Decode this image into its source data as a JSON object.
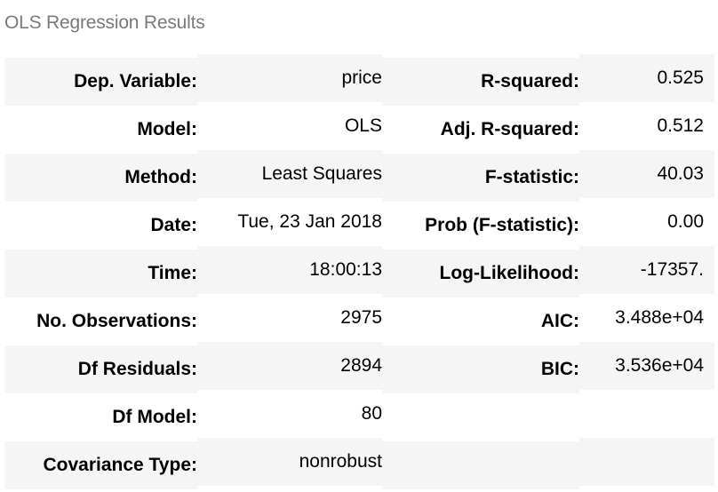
{
  "caption": "OLS Regression Results",
  "rows": [
    {
      "label1": "Dep. Variable:",
      "value1": "price",
      "label2": "R-squared:",
      "value2": "0.525"
    },
    {
      "label1": "Model:",
      "value1": "OLS",
      "label2": "Adj. R-squared:",
      "value2": "0.512"
    },
    {
      "label1": "Method:",
      "value1": "Least Squares",
      "label2": "F-statistic:",
      "value2": "40.03"
    },
    {
      "label1": "Date:",
      "value1": "Tue, 23 Jan 2018",
      "label2": "Prob (F-statistic):",
      "value2": "0.00"
    },
    {
      "label1": "Time:",
      "value1": "18:00:13",
      "label2": "Log-Likelihood:",
      "value2": "-17357."
    },
    {
      "label1": "No. Observations:",
      "value1": "2975",
      "label2": "AIC:",
      "value2": "3.488e+04"
    },
    {
      "label1": "Df Residuals:",
      "value1": "2894",
      "label2": "BIC:",
      "value2": "3.536e+04"
    },
    {
      "label1": "Df Model:",
      "value1": "80",
      "label2": "",
      "value2": ""
    },
    {
      "label1": "Covariance Type:",
      "value1": "nonrobust",
      "label2": "",
      "value2": ""
    }
  ]
}
